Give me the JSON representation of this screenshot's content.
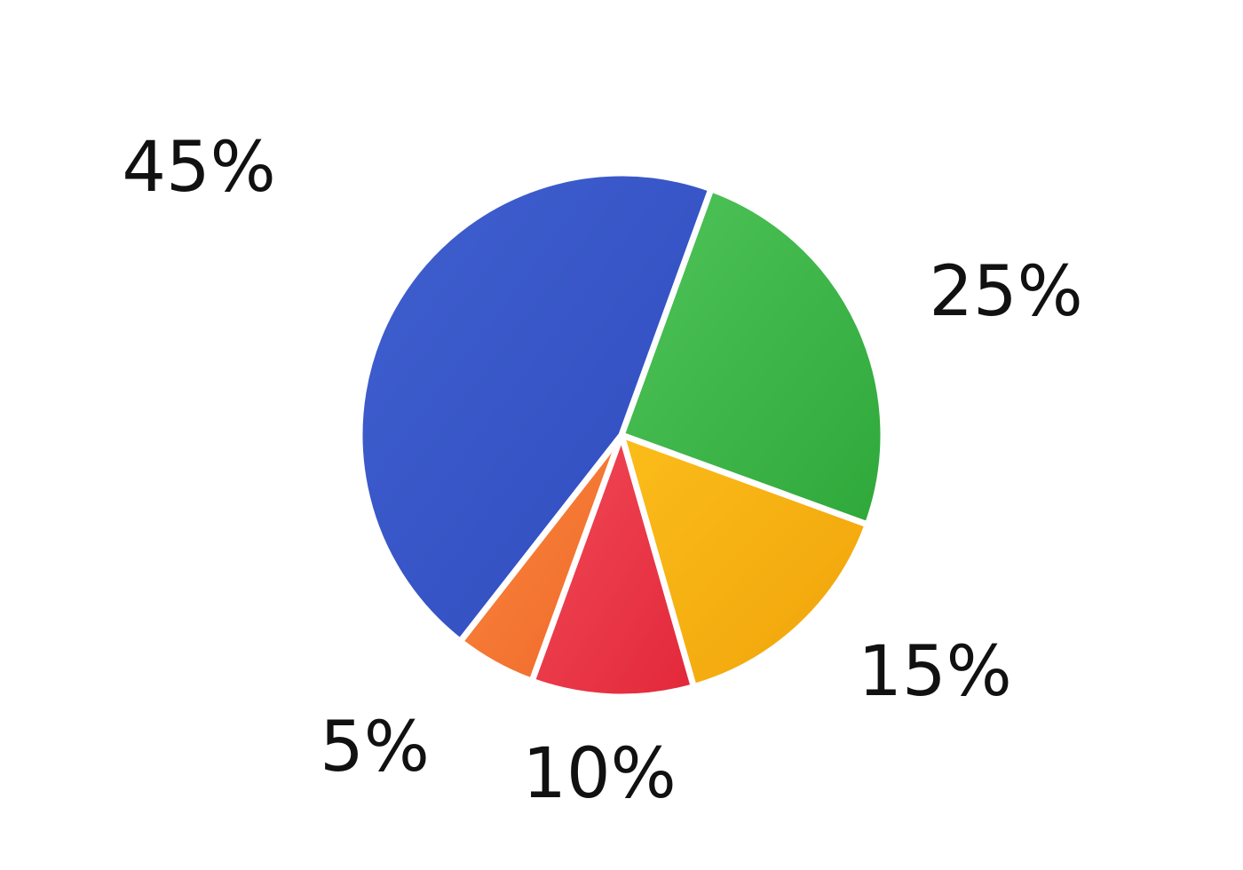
{
  "chart_data": {
    "type": "pie",
    "title": "",
    "legend": "none",
    "slices": [
      {
        "label": "25%",
        "value": 25,
        "color_light": "#4fc45a",
        "color_dark": "#2fa83a"
      },
      {
        "label": "15%",
        "value": 15,
        "color_light": "#fbbd1a",
        "color_dark": "#f0a30a"
      },
      {
        "label": "10%",
        "value": 10,
        "color_light": "#f24a58",
        "color_dark": "#e2283a"
      },
      {
        "label": "5%",
        "value": 5,
        "color_light": "#f98a3e",
        "color_dark": "#f0662a"
      },
      {
        "label": "45%",
        "value": 45,
        "color_light": "#4060d0",
        "color_dark": "#2f4bbd"
      }
    ]
  }
}
